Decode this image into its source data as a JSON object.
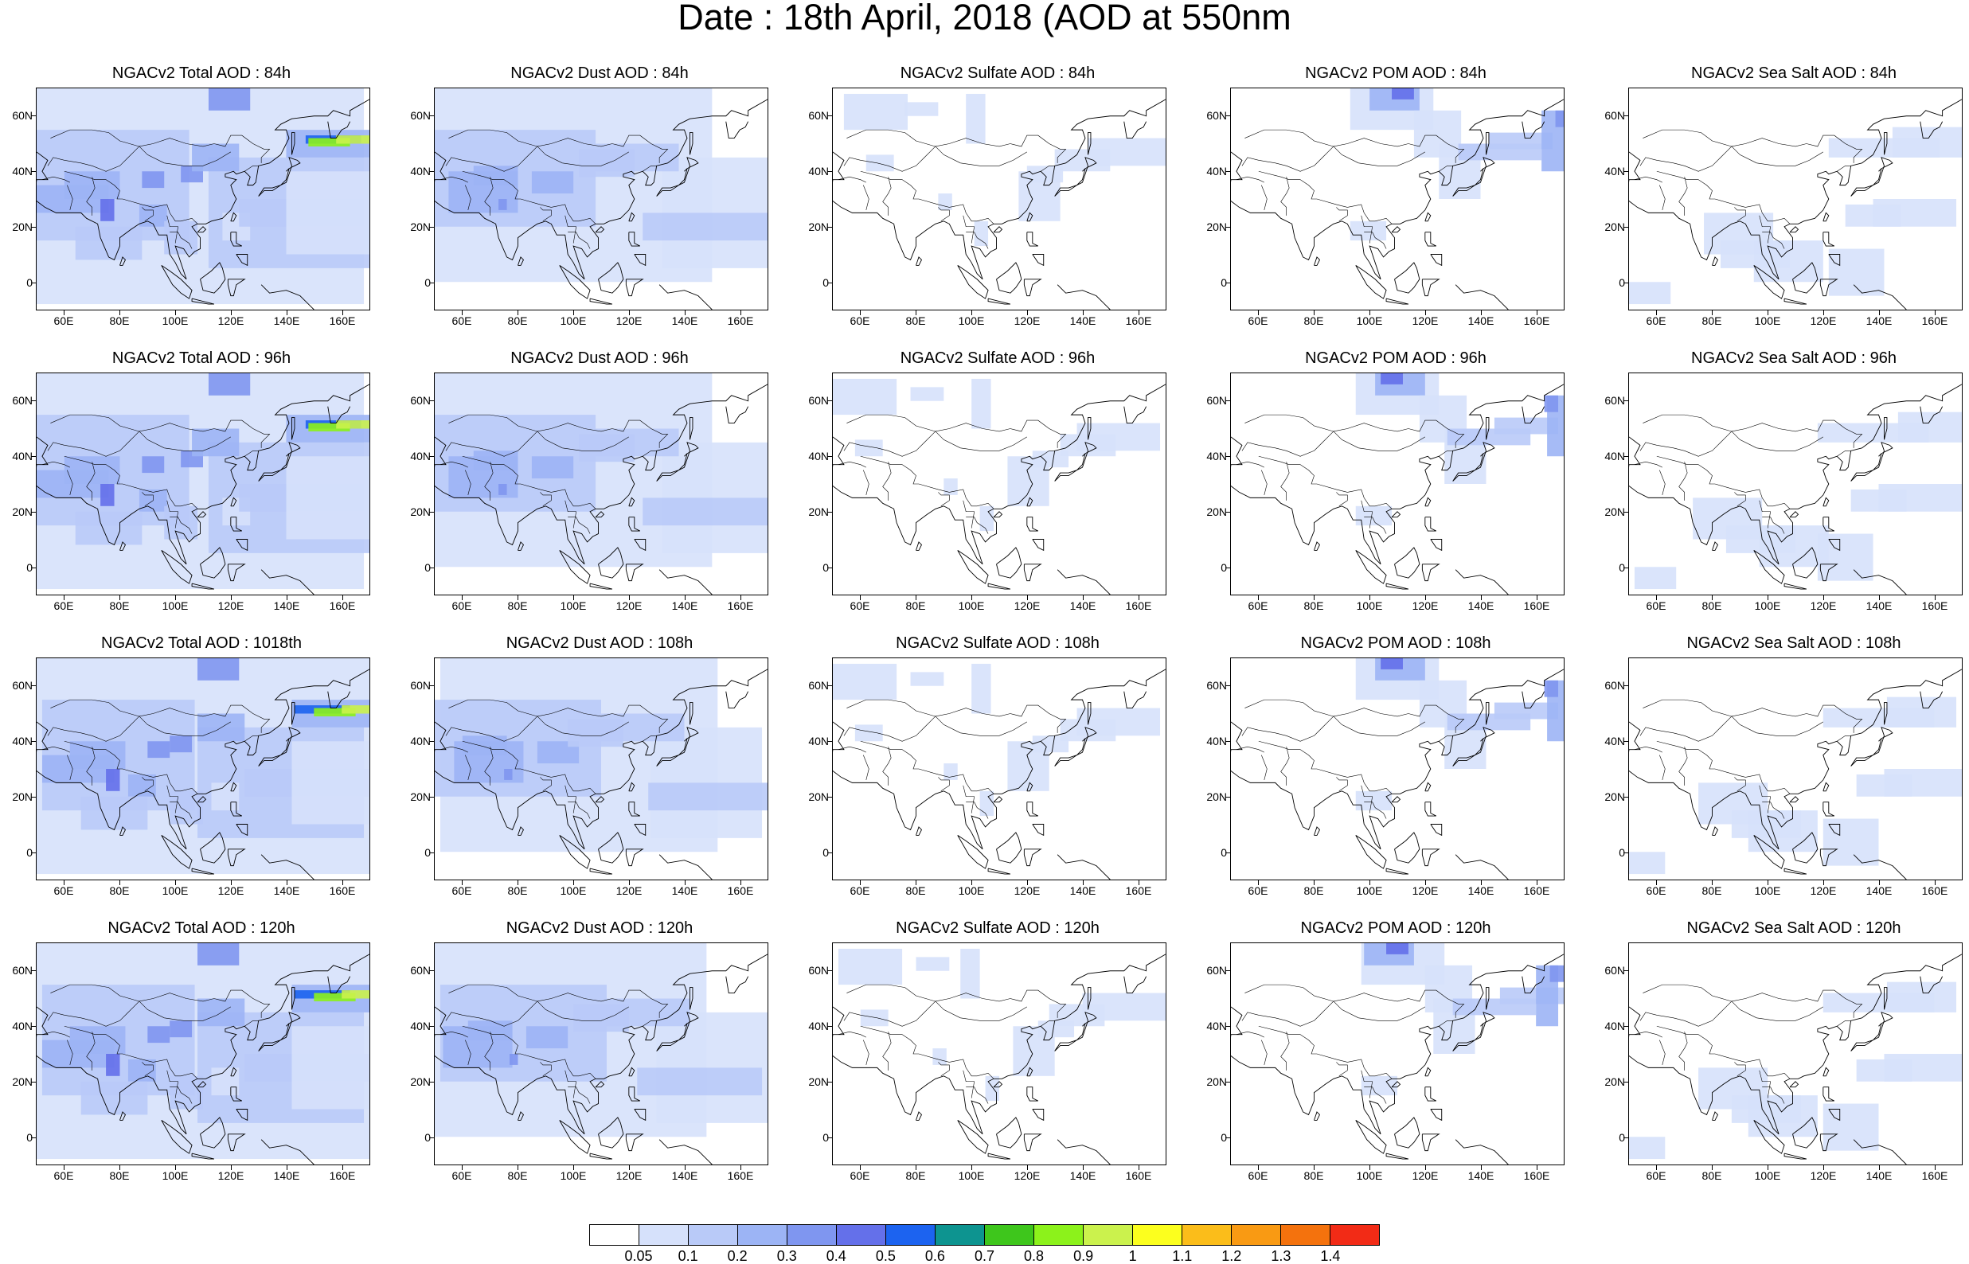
{
  "title": "Date : 18th April, 2018 (AOD at 550nm",
  "axes": {
    "lat_ticks": [
      "60N",
      "40N",
      "20N",
      "0"
    ],
    "lat_values": [
      60,
      40,
      20,
      0
    ],
    "lon_ticks": [
      "60E",
      "80E",
      "100E",
      "120E",
      "140E",
      "160E"
    ],
    "lon_values": [
      60,
      80,
      100,
      120,
      140,
      160
    ],
    "lon_range": [
      50,
      170
    ],
    "lat_range": [
      -10,
      70
    ]
  },
  "panels": [
    {
      "title": "NGACv2 Total AOD : 84h",
      "species": "total"
    },
    {
      "title": "NGACv2 Dust AOD : 84h",
      "species": "dust"
    },
    {
      "title": "NGACv2 Sulfate AOD : 84h",
      "species": "sulfate"
    },
    {
      "title": "NGACv2 POM AOD : 84h",
      "species": "pom"
    },
    {
      "title": "NGACv2 Sea Salt AOD : 84h",
      "species": "seasalt"
    },
    {
      "title": "NGACv2 Total AOD : 96h",
      "species": "total"
    },
    {
      "title": "NGACv2 Dust AOD : 96h",
      "species": "dust"
    },
    {
      "title": "NGACv2 Sulfate AOD : 96h",
      "species": "sulfate"
    },
    {
      "title": "NGACv2 POM AOD : 96h",
      "species": "pom"
    },
    {
      "title": "NGACv2 Sea Salt AOD : 96h",
      "species": "seasalt"
    },
    {
      "title": "NGACv2 Total AOD : 1018th",
      "species": "total"
    },
    {
      "title": "NGACv2 Dust AOD : 108h",
      "species": "dust"
    },
    {
      "title": "NGACv2 Sulfate AOD : 108h",
      "species": "sulfate"
    },
    {
      "title": "NGACv2 POM AOD : 108h",
      "species": "pom"
    },
    {
      "title": "NGACv2 Sea Salt AOD : 108h",
      "species": "seasalt"
    },
    {
      "title": "NGACv2 Total AOD : 120h",
      "species": "total"
    },
    {
      "title": "NGACv2 Dust AOD : 120h",
      "species": "dust"
    },
    {
      "title": "NGACv2 Sulfate AOD : 120h",
      "species": "sulfate"
    },
    {
      "title": "NGACv2 POM AOD : 120h",
      "species": "pom"
    },
    {
      "title": "NGACv2 Sea Salt  AOD : 120h",
      "species": "seasalt"
    }
  ],
  "colorbar": {
    "labels": [
      "0.05",
      "0.1",
      "0.2",
      "0.3",
      "0.4",
      "0.5",
      "0.6",
      "0.7",
      "0.8",
      "0.9",
      "1",
      "1.1",
      "1.2",
      "1.3",
      "1.4"
    ],
    "colors": [
      "#ffffff",
      "#d6e1fb",
      "#b9caf8",
      "#9cb4f5",
      "#7f96f0",
      "#6470ea",
      "#1c63f0",
      "#0d9490",
      "#3ec61c",
      "#8cf21b",
      "#cbf24d",
      "#fcff1e",
      "#fbbd1a",
      "#f99a13",
      "#f4720d",
      "#f22b16"
    ]
  }
}
